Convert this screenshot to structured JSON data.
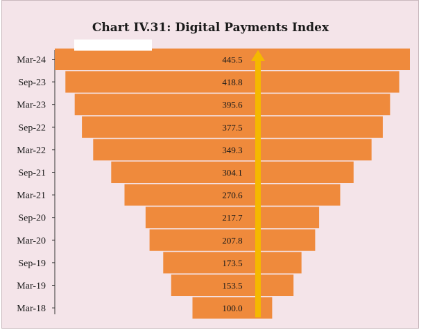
{
  "chart_data": {
    "type": "bar",
    "title": "Chart IV.31: Digital Payments Index",
    "xlabel": "",
    "ylabel": "",
    "orientation": "horizontal-centered",
    "categories": [
      "Mar-24",
      "Sep-23",
      "Mar-23",
      "Sep-22",
      "Mar-22",
      "Sep-21",
      "Mar-21",
      "Sep-20",
      "Mar-20",
      "Sep-19",
      "Mar-19",
      "Mar-18"
    ],
    "values": [
      445.5,
      418.8,
      395.6,
      377.5,
      349.3,
      304.1,
      270.6,
      217.7,
      207.8,
      173.5,
      153.5,
      100.0
    ],
    "value_labels": [
      "445.5",
      "418.8",
      "395.6",
      "377.5",
      "349.3",
      "304.1",
      "270.6",
      "217.7",
      "207.8",
      "173.5",
      "153.5",
      "100.0"
    ],
    "grid": false,
    "legend": "none",
    "bar_color": "#ef8a3c",
    "arrow_color": "#f5b800",
    "background_color": "#f4e4e9"
  }
}
